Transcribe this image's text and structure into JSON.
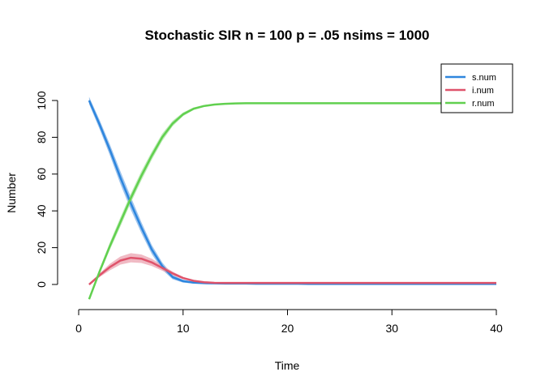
{
  "chart_data": {
    "type": "line",
    "title": "Stochastic SIR n = 100 p = .05 nsims = 1000",
    "xlabel": "Time",
    "ylabel": "Number",
    "xlim": [
      1,
      40
    ],
    "ylim": [
      -8,
      100
    ],
    "x_ticks": [
      0,
      10,
      20,
      30,
      40
    ],
    "y_ticks": [
      0,
      20,
      40,
      60,
      80,
      100
    ],
    "grid": false,
    "legend": "top-right",
    "x": [
      1,
      2,
      3,
      4,
      5,
      6,
      7,
      8,
      9,
      10,
      11,
      12,
      13,
      14,
      15,
      16,
      17,
      18,
      19,
      20,
      21,
      22,
      23,
      24,
      25,
      26,
      27,
      28,
      29,
      30,
      31,
      32,
      33,
      34,
      35,
      36,
      37,
      38,
      39,
      40
    ],
    "series": [
      {
        "name": "s.num",
        "color": "#2E86DE",
        "band_color": "#7FB2E8",
        "values": [
          100,
          87,
          73,
          58,
          44,
          31,
          19,
          10,
          4,
          1.8,
          1,
          0.7,
          0.6,
          0.5,
          0.5,
          0.5,
          0.4,
          0.4,
          0.4,
          0.4,
          0.4,
          0.3,
          0.3,
          0.3,
          0.3,
          0.3,
          0.3,
          0.3,
          0.3,
          0.3,
          0.3,
          0.3,
          0.3,
          0.3,
          0.3,
          0.3,
          0.3,
          0.3,
          0.3,
          0.3
        ],
        "band": [
          2,
          2.5,
          3,
          3.5,
          3.5,
          3,
          2.5,
          2,
          1.2,
          0.8,
          0.5,
          0.3,
          0.2,
          0.2,
          0.2,
          0.2,
          0.2,
          0.2,
          0.2,
          0.2,
          0.2,
          0.2,
          0.2,
          0.2,
          0.2,
          0.2,
          0.2,
          0.2,
          0.2,
          0.2,
          0.2,
          0.2,
          0.2,
          0.2,
          0.2,
          0.2,
          0.2,
          0.2,
          0.2,
          0.2
        ]
      },
      {
        "name": "i.num",
        "color": "#DF536B",
        "band_color": "#EBA3B0",
        "values": [
          0,
          5,
          9.5,
          13,
          14.5,
          14,
          12,
          9,
          6,
          3.5,
          2,
          1.2,
          0.9,
          0.8,
          0.8,
          0.8,
          0.8,
          0.8,
          0.8,
          0.8,
          0.8,
          0.8,
          0.8,
          0.8,
          0.8,
          0.8,
          0.8,
          0.8,
          0.8,
          0.8,
          0.8,
          0.8,
          0.8,
          0.8,
          0.8,
          0.8,
          0.8,
          0.8,
          0.8,
          0.8
        ],
        "band": [
          0.3,
          1,
          1.8,
          2.2,
          2.5,
          2.3,
          2,
          1.5,
          1,
          0.6,
          0.4,
          0.3,
          0.2,
          0.2,
          0.2,
          0.2,
          0.2,
          0.2,
          0.2,
          0.2,
          0.2,
          0.2,
          0.2,
          0.2,
          0.2,
          0.2,
          0.2,
          0.2,
          0.2,
          0.2,
          0.2,
          0.2,
          0.2,
          0.2,
          0.2,
          0.2,
          0.2,
          0.2,
          0.2,
          0.2
        ]
      },
      {
        "name": "r.num",
        "color": "#61D04F",
        "band_color": "#A9E6A0",
        "values": [
          -8,
          7,
          21,
          34,
          47,
          59,
          70,
          80,
          87.5,
          92.5,
          95.5,
          97,
          97.8,
          98.2,
          98.4,
          98.5,
          98.5,
          98.5,
          98.5,
          98.5,
          98.5,
          98.5,
          98.5,
          98.5,
          98.5,
          98.5,
          98.5,
          98.5,
          98.5,
          98.5,
          98.5,
          98.5,
          98.5,
          98.5,
          98.5,
          98.5,
          98.5,
          98.5,
          98.5,
          98.5
        ],
        "band": [
          0.5,
          1.5,
          2,
          2.5,
          2.5,
          2.5,
          2.2,
          2,
          1.5,
          1,
          0.7,
          0.5,
          0.4,
          0.3,
          0.3,
          0.3,
          0.3,
          0.3,
          0.3,
          0.3,
          0.3,
          0.3,
          0.3,
          0.3,
          0.3,
          0.3,
          0.3,
          0.3,
          0.3,
          0.3,
          0.3,
          0.3,
          0.3,
          0.3,
          0.3,
          0.3,
          0.3,
          0.3,
          0.3,
          0.3
        ]
      }
    ]
  }
}
